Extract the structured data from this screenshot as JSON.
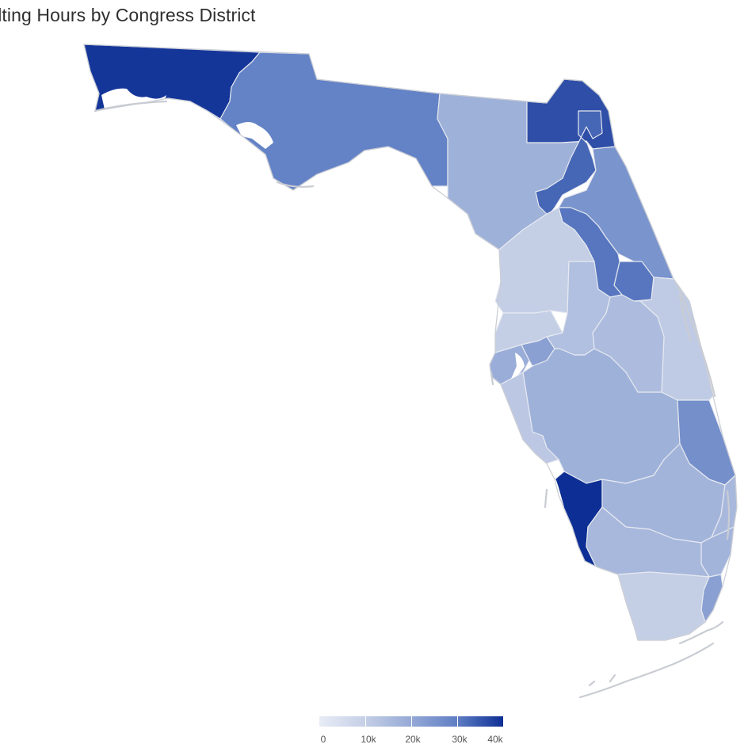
{
  "map": {
    "title": "ilting Hours by Congress District"
  },
  "legend": {
    "ticks": [
      "0",
      "10k",
      "20k",
      "30k",
      "40k"
    ],
    "min": 0,
    "max": 40000,
    "color_low": "#e8ecf6",
    "color_high": "#0d2e94"
  },
  "districts": [
    {
      "id": "D1",
      "value": 39000
    },
    {
      "id": "D2",
      "value": 29000
    },
    {
      "id": "D3",
      "value": 18000
    },
    {
      "id": "D4",
      "value": 36000
    },
    {
      "id": "D5",
      "value": 33000
    },
    {
      "id": "D6",
      "value": 25000
    },
    {
      "id": "D7",
      "value": 31000
    },
    {
      "id": "D8",
      "value": 11000
    },
    {
      "id": "D9",
      "value": 15000
    },
    {
      "id": "D10",
      "value": 31000
    },
    {
      "id": "D11",
      "value": 10000
    },
    {
      "id": "D12",
      "value": 10000
    },
    {
      "id": "D13",
      "value": 19000
    },
    {
      "id": "D14",
      "value": 22000
    },
    {
      "id": "D15",
      "value": 14000
    },
    {
      "id": "D16",
      "value": 12000
    },
    {
      "id": "D17",
      "value": 18000
    },
    {
      "id": "D18",
      "value": 26000
    },
    {
      "id": "D19",
      "value": 40000
    },
    {
      "id": "D20",
      "value": 17000
    },
    {
      "id": "D21",
      "value": 16000
    },
    {
      "id": "D22",
      "value": 17000
    },
    {
      "id": "D23",
      "value": 16000
    },
    {
      "id": "D24",
      "value": 15000
    },
    {
      "id": "D25",
      "value": 16000
    },
    {
      "id": "D26",
      "value": 22000
    },
    {
      "id": "D27",
      "value": 10000
    },
    {
      "id": "D28",
      "value": 12000
    }
  ]
}
